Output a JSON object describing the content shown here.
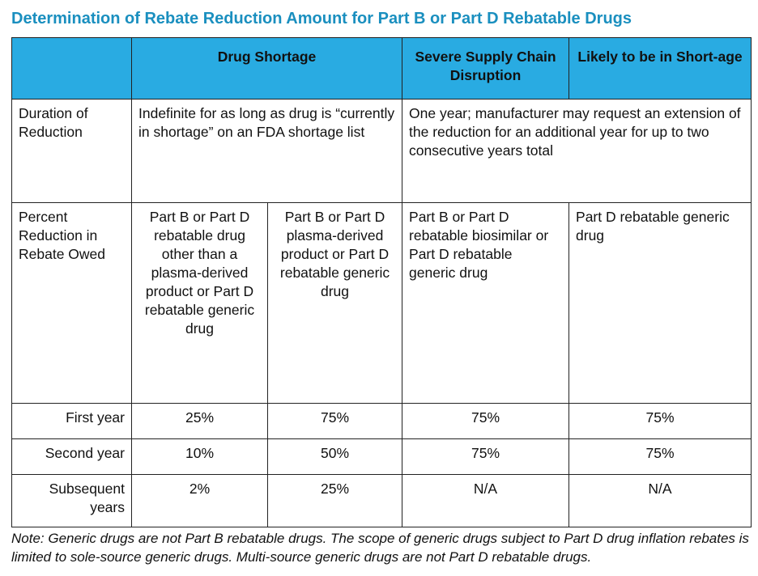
{
  "title": "Determination of Rebate Reduction Amount for Part B or Part D Rebatable Drugs",
  "table": {
    "header": [
      "Drug Shortage",
      "Severe Supply Chain Disruption",
      "Likely to be in Short-age"
    ],
    "rows": [
      [
        "Duration of Reduction",
        "Indefinite for as long as drug is “currently in shortage” on an FDA shortage list",
        "One year; manufacturer may request an extension of the reduction for an additional year for up to two consecutive years total"
      ],
      [
        "Percent Reduction in Rebate Owed",
        "Part B or Part D rebatable drug other than a plasma-derived product or Part D rebatable generic drug",
        "Part B or Part D plasma-derived product or Part D rebatable generic drug",
        "Part B or Part D rebatable biosimilar or Part D rebatable generic drug",
        "Part D rebatable generic drug"
      ],
      [
        "First year",
        "25%",
        "75%",
        "75%",
        "75%"
      ],
      [
        "Second year",
        "10%",
        "50%",
        "75%",
        "75%"
      ],
      [
        "Subsequent years",
        "2%",
        "25%",
        "N/A",
        "N/A"
      ]
    ]
  },
  "note": "Note: Generic drugs are not Part B rebatable drugs. The scope of generic drugs subject to Part D drug inflation rebates is limited to sole-source generic drugs. Multi-source generic drugs are not Part D rebatable drugs."
}
